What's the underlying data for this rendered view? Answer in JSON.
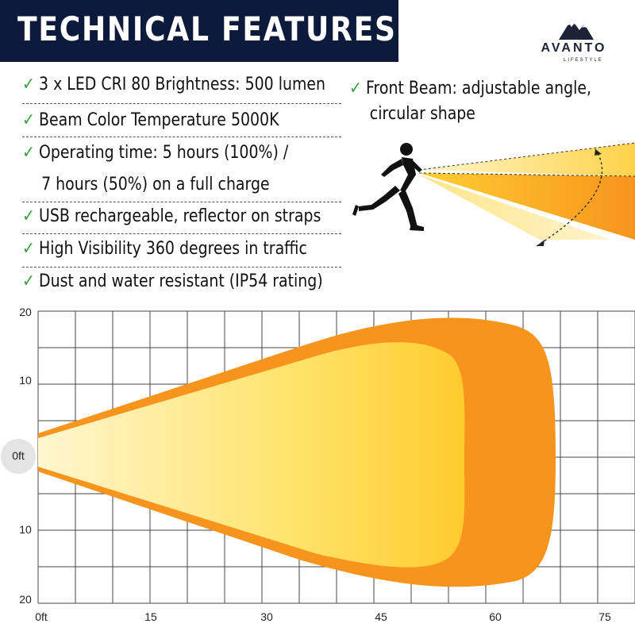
{
  "header": {
    "title": "TECHNICAL FEATURES"
  },
  "brand": {
    "name": "AVANTO",
    "sub": "LIFESTYLE",
    "logo_icon": "mountain-icon"
  },
  "features": [
    "3 x LED CRI 80 Brightness: 500 lumen",
    "Beam Color Temperature 5000K",
    "Operating time: 5 hours (100%) /",
    "7 hours (50%) on a full charge",
    "USB rechargeable, reflector on straps",
    "High Visibility 360 degrees in traffic",
    "Dust and water resistant (IP54 rating)"
  ],
  "front_beam": {
    "line1": "Front Beam: adjustable angle,",
    "line2": "circular shape"
  },
  "colors": {
    "header_bg": "#0e1a3c",
    "check": "#3aa33e",
    "beam_outer": "#f7941d",
    "beam_inner_light": "#fff4c2",
    "beam_inner_dark": "#ffcc33"
  },
  "chart_data": {
    "type": "area",
    "x_ticks": [
      "0ft",
      "15",
      "30",
      "45",
      "60",
      "75"
    ],
    "y_ticks_top": [
      "20",
      "10"
    ],
    "y_tick_zero": "0ft",
    "y_ticks_bottom": [
      "10",
      "20"
    ],
    "xlim": [
      0,
      75
    ],
    "ylim": [
      -20,
      20
    ],
    "grid": true
  }
}
